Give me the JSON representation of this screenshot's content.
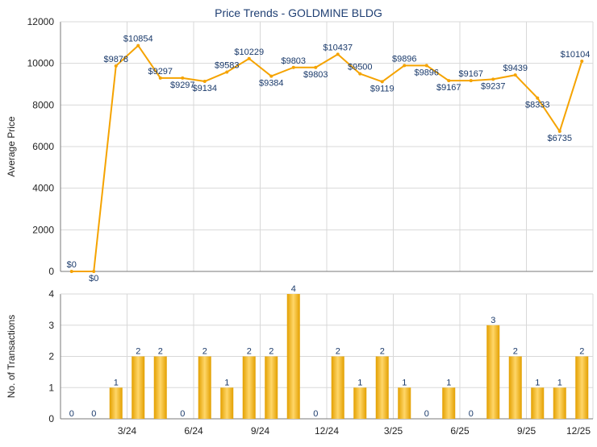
{
  "title": "Price Trends - GOLDMINE BLDG",
  "colors": {
    "line": "#f5a300",
    "bar_dark": "#e3a000",
    "bar_light": "#ffd668",
    "grid": "#d8d8d8",
    "axis": "#7a7a7a",
    "label": "#1a3a6b",
    "title": "#1f3f73"
  },
  "chart_data": [
    {
      "type": "line",
      "ylabel": "Average Price",
      "ylim": [
        0,
        12000
      ],
      "yticks": [
        "0",
        "2000",
        "4000",
        "6000",
        "8000",
        "10000",
        "12000"
      ],
      "grid": true,
      "values": [
        0,
        0,
        9878,
        10854,
        9297,
        9297,
        9134,
        9583,
        10229,
        9384,
        9803,
        9803,
        10437,
        9500,
        9119,
        9896,
        9896,
        9167,
        9167,
        9237,
        9439,
        8333,
        6735,
        10104
      ],
      "labels": [
        "$0",
        "$0",
        "$9878",
        "$10854",
        "$9297",
        "$9297",
        "$9134",
        "$9583",
        "$10229",
        "$9384",
        "$9803",
        "$9803",
        "$10437",
        "$9500",
        "$9119",
        "$9896",
        "$9896",
        "$9167",
        "$9167",
        "$9237",
        "$9439",
        "$8333",
        "$6735",
        "$10104"
      ],
      "label_above": [
        true,
        false,
        true,
        true,
        true,
        false,
        false,
        true,
        true,
        false,
        true,
        false,
        true,
        true,
        false,
        true,
        false,
        false,
        true,
        false,
        true,
        false,
        false,
        true
      ]
    },
    {
      "type": "bar",
      "ylabel": "No. of Transactions",
      "ylim": [
        0,
        4
      ],
      "yticks": [
        "0",
        "1",
        "2",
        "3",
        "4"
      ],
      "grid": true,
      "values": [
        0,
        0,
        1,
        2,
        2,
        0,
        2,
        1,
        2,
        2,
        4,
        0,
        2,
        1,
        2,
        1,
        0,
        1,
        0,
        3,
        2,
        1,
        1,
        2
      ],
      "labels": [
        "0",
        "0",
        "1",
        "2",
        "2",
        "0",
        "2",
        "1",
        "2",
        "2",
        "4",
        "0",
        "2",
        "1",
        "2",
        "1",
        "0",
        "1",
        "0",
        "3",
        "2",
        "1",
        "1",
        "2"
      ]
    }
  ],
  "x_ticks": [
    {
      "index": 2,
      "label": "3/24"
    },
    {
      "index": 5,
      "label": "6/24"
    },
    {
      "index": 8,
      "label": "9/24"
    },
    {
      "index": 11,
      "label": "12/24"
    },
    {
      "index": 14,
      "label": "3/25"
    },
    {
      "index": 17,
      "label": "6/25"
    },
    {
      "index": 20,
      "label": "9/25"
    },
    {
      "index": 23,
      "label": "12/25"
    }
  ]
}
